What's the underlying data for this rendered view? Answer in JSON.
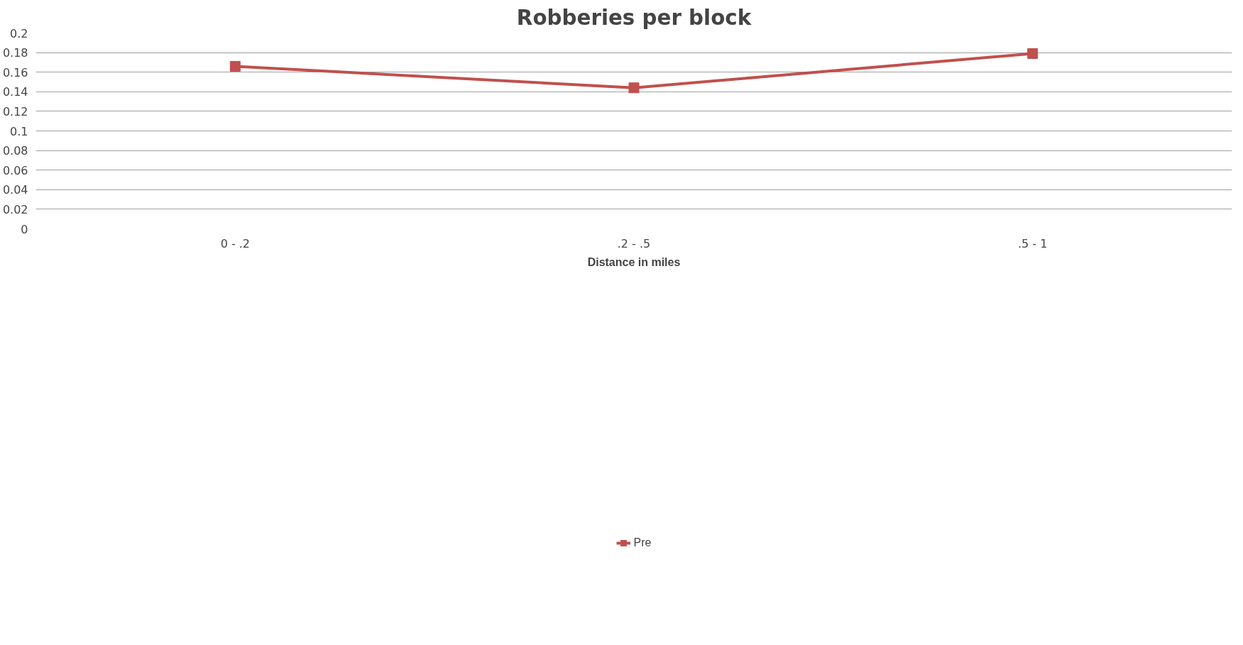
{
  "chart_data": {
    "type": "line",
    "title": "Robberies per block",
    "xlabel": "Distance in miles",
    "categories": [
      "0 - .2",
      ".2 - .5",
      ".5 - 1"
    ],
    "series": [
      {
        "name": "Pre",
        "color": "#c0504d",
        "values": [
          0.166,
          0.144,
          0.179
        ]
      }
    ],
    "ylim": [
      0,
      0.2
    ],
    "yticks": [
      0,
      0.02,
      0.04,
      0.06,
      0.08,
      0.1,
      0.12,
      0.14,
      0.16,
      0.18,
      0.2
    ],
    "grid": "y",
    "legend": "bottom",
    "marker": "square",
    "line_style": "solid"
  }
}
